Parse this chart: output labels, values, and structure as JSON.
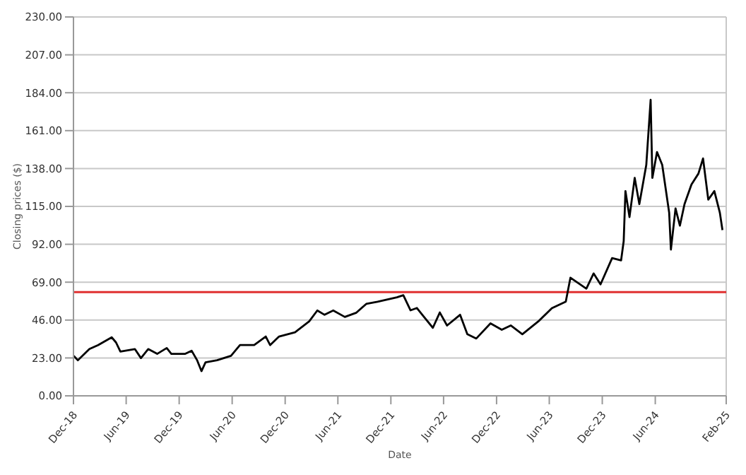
{
  "chart_data": {
    "type": "line",
    "xlabel": "Date",
    "ylabel": "Closing prices ($)",
    "x": [
      "2018-12-02",
      "2018-12-16",
      "2019-01-25",
      "2019-02-24",
      "2019-04-12",
      "2019-04-27",
      "2019-05-12",
      "2019-07-01",
      "2019-07-22",
      "2019-08-16",
      "2019-09-16",
      "2019-10-19",
      "2019-11-04",
      "2019-12-22",
      "2020-01-13",
      "2020-02-01",
      "2020-02-16",
      "2020-03-01",
      "2020-04-10",
      "2020-05-28",
      "2020-06-28",
      "2020-08-16",
      "2020-09-25",
      "2020-10-10",
      "2020-11-10",
      "2021-01-04",
      "2021-02-22",
      "2021-03-22",
      "2021-04-16",
      "2021-05-16",
      "2021-06-25",
      "2021-08-04",
      "2021-09-07",
      "2021-10-16",
      "2021-12-22",
      "2022-01-13",
      "2022-02-07",
      "2022-03-01",
      "2022-03-25",
      "2022-04-25",
      "2022-05-19",
      "2022-06-13",
      "2022-07-28",
      "2022-08-22",
      "2022-09-22",
      "2022-11-10",
      "2022-12-19",
      "2023-01-19",
      "2023-02-28",
      "2023-04-25",
      "2023-06-10",
      "2023-07-28",
      "2023-08-13",
      "2023-10-07",
      "2023-11-01",
      "2023-11-25",
      "2024-01-04",
      "2024-02-04",
      "2024-02-13",
      "2024-02-19",
      "2024-03-04",
      "2024-03-22",
      "2024-04-07",
      "2024-05-01",
      "2024-05-16",
      "2024-05-22",
      "2024-06-07",
      "2024-06-25",
      "2024-07-19",
      "2024-07-25",
      "2024-08-10",
      "2024-08-25",
      "2024-09-10",
      "2024-10-04",
      "2024-10-28",
      "2024-11-13",
      "2024-12-01",
      "2024-12-22",
      "2025-01-10",
      "2025-01-19"
    ],
    "series": [
      {
        "color": "#000000",
        "values": [
          24.3,
          21.6,
          28.4,
          30.8,
          35.5,
          32.4,
          26.9,
          28.4,
          22.9,
          28.4,
          25.5,
          29,
          25.5,
          25.5,
          27.4,
          21.6,
          15,
          20.3,
          21.6,
          24.3,
          30.8,
          30.8,
          36,
          30.8,
          36,
          38.6,
          45.2,
          51.8,
          49.2,
          51.8,
          47.9,
          50.5,
          55.8,
          57.1,
          59.8,
          61.1,
          51.9,
          53.3,
          48,
          41.3,
          50.6,
          42.7,
          49.2,
          37.4,
          34.8,
          44,
          40.1,
          42.7,
          37.4,
          45.3,
          53.2,
          57.2,
          71.7,
          65.1,
          74.3,
          67.7,
          83.6,
          82.2,
          94,
          124.3,
          108.5,
          132.3,
          116.4,
          140.2,
          179.7,
          132.3,
          148,
          140.2,
          111.2,
          88.8,
          113.8,
          103.3,
          116.4,
          128.3,
          134.9,
          144.1,
          119.1,
          124.3,
          111.2,
          100.6
        ]
      }
    ],
    "xlim": [
      "2018-12-01",
      "2025-02-01"
    ],
    "xticks": [
      {
        "value": "2018-12-01",
        "label": "Dec-18"
      },
      {
        "value": "2019-06-01",
        "label": "Jun-19"
      },
      {
        "value": "2019-12-01",
        "label": "Dec-19"
      },
      {
        "value": "2020-06-01",
        "label": "Jun-20"
      },
      {
        "value": "2020-12-01",
        "label": "Dec-20"
      },
      {
        "value": "2021-06-01",
        "label": "Jun-21"
      },
      {
        "value": "2021-12-01",
        "label": "Dec-21"
      },
      {
        "value": "2022-06-01",
        "label": "Jun-22"
      },
      {
        "value": "2022-12-01",
        "label": "Dec-22"
      },
      {
        "value": "2023-06-01",
        "label": "Jun-23"
      },
      {
        "value": "2023-12-01",
        "label": "Dec-23"
      },
      {
        "value": "2024-06-01",
        "label": "Jun-24"
      },
      {
        "value": "2025-02-01",
        "label": "Feb-25"
      }
    ],
    "ylim": [
      0,
      230
    ],
    "yticks": [
      {
        "value": 0,
        "label": "0.00"
      },
      {
        "value": 23,
        "label": "23.00"
      },
      {
        "value": 46,
        "label": "46.00"
      },
      {
        "value": 69,
        "label": "69.00"
      },
      {
        "value": 92,
        "label": "92.00"
      },
      {
        "value": 115,
        "label": "115.00"
      },
      {
        "value": 138,
        "label": "138.00"
      },
      {
        "value": 161,
        "label": "161.00"
      },
      {
        "value": 184,
        "label": "184.00"
      },
      {
        "value": 207,
        "label": "207.00"
      },
      {
        "value": 230,
        "label": "230.00"
      }
    ],
    "ref_lines": [
      {
        "axis": "y",
        "value": 63,
        "color": "#e03030"
      }
    ],
    "grid": "y",
    "marker": "none",
    "line_style": "solid",
    "legend": false
  }
}
